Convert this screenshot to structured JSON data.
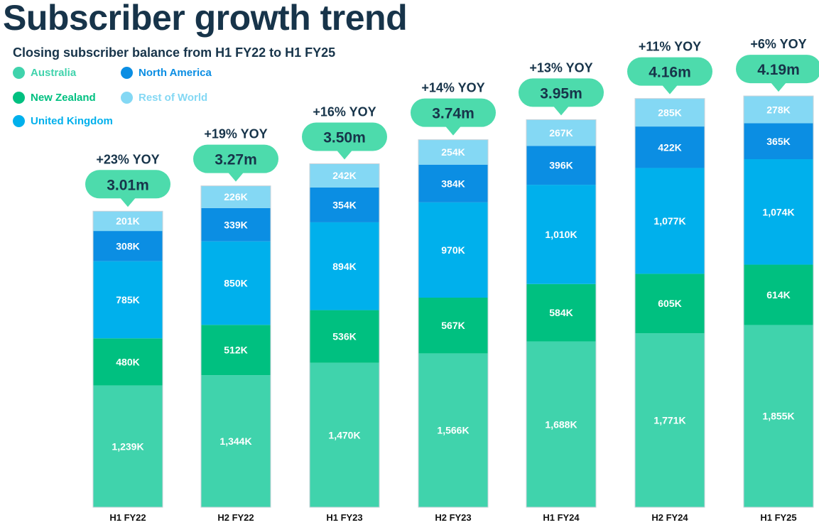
{
  "header": {
    "title": "Subscriber growth trend",
    "subtitle": "Closing subscriber balance from H1 FY22 to H1 FY25"
  },
  "legend": [
    {
      "name": "Australia",
      "color": "#40d3ac"
    },
    {
      "name": "North America",
      "color": "#0b8ee3"
    },
    {
      "name": "New Zealand",
      "color": "#00c080"
    },
    {
      "name": "Rest of World",
      "color": "#84d8f4"
    },
    {
      "name": "United Kingdom",
      "color": "#00b0ec"
    }
  ],
  "chart_data": {
    "type": "bar",
    "stacked": true,
    "title": "Subscriber growth trend",
    "subtitle": "Closing subscriber balance from H1 FY22 to H1 FY25",
    "categories": [
      "H1 FY22",
      "H2 FY22",
      "H1 FY23",
      "H2 FY23",
      "H1 FY24",
      "H2 FY24",
      "H1 FY25"
    ],
    "series": [
      {
        "name": "Australia",
        "color": "#40d3ac",
        "values": [
          1239,
          1344,
          1470,
          1566,
          1688,
          1771,
          1855
        ],
        "labels": [
          "1,239K",
          "1,344K",
          "1,470K",
          "1,566K",
          "1,688K",
          "1,771K",
          "1,855K"
        ]
      },
      {
        "name": "New Zealand",
        "color": "#00c080",
        "values": [
          480,
          512,
          536,
          567,
          584,
          605,
          614
        ],
        "labels": [
          "480K",
          "512K",
          "536K",
          "567K",
          "584K",
          "605K",
          "614K"
        ]
      },
      {
        "name": "United Kingdom",
        "color": "#00b0ec",
        "values": [
          785,
          850,
          894,
          970,
          1010,
          1077,
          1074
        ],
        "labels": [
          "785K",
          "850K",
          "894K",
          "970K",
          "1,010K",
          "1,077K",
          "1,074K"
        ]
      },
      {
        "name": "North America",
        "color": "#0b8ee3",
        "values": [
          308,
          339,
          354,
          384,
          396,
          422,
          365
        ],
        "labels": [
          "308K",
          "339K",
          "354K",
          "384K",
          "396K",
          "422K",
          "365K"
        ]
      },
      {
        "name": "Rest of World",
        "color": "#84d8f4",
        "values": [
          201,
          226,
          242,
          254,
          267,
          285,
          278
        ],
        "labels": [
          "201K",
          "226K",
          "242K",
          "254K",
          "267K",
          "285K",
          "278K"
        ]
      }
    ],
    "totals": [
      "3.01m",
      "3.27m",
      "3.50m",
      "3.74m",
      "3.95m",
      "4.16m",
      "4.19m"
    ],
    "yoy": [
      "+23% YOY",
      "+19% YOY",
      "+16% YOY",
      "+14% YOY",
      "+13% YOY",
      "+11% YOY",
      "+6% YOY"
    ],
    "total_bubble_color": "#4ddbac",
    "grid": false,
    "legend_position": "top-left"
  }
}
